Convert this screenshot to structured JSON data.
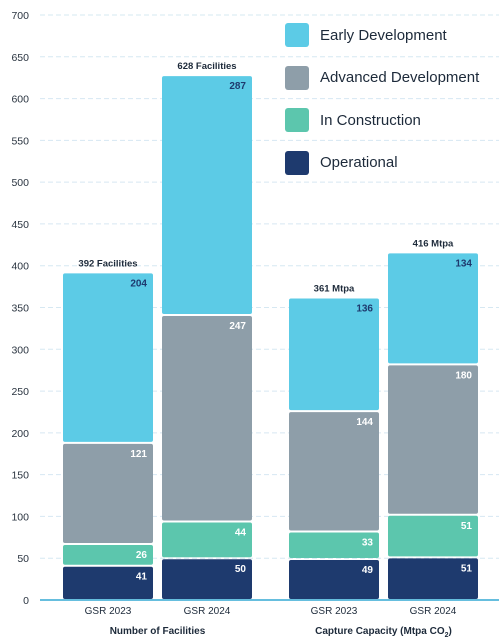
{
  "chart_data": {
    "type": "bar",
    "stacked": true,
    "ylim": [
      0,
      700
    ],
    "yticks": [
      0,
      50,
      100,
      150,
      200,
      250,
      300,
      350,
      400,
      450,
      500,
      550,
      600,
      650,
      700
    ],
    "grid": true,
    "legend_position": "top-right",
    "groups": [
      {
        "name": "Number of Facilities",
        "categories": [
          "GSR 2023",
          "GSR 2024"
        ],
        "totals": [
          "392 Facilities",
          "628 Facilities"
        ]
      },
      {
        "name": "Capture Capacity (Mtpa CO₂)",
        "categories": [
          "GSR 2023",
          "GSR 2024"
        ],
        "totals": [
          "361 Mtpa",
          "416 Mtpa"
        ]
      }
    ],
    "series": [
      {
        "name": "Operational",
        "color": "#1e3a6e",
        "values": [
          41,
          50,
          49,
          51
        ]
      },
      {
        "name": "In Construction",
        "color": "#5cc6ad",
        "values": [
          26,
          44,
          33,
          51
        ]
      },
      {
        "name": "Advanced Development",
        "color": "#8e9ea9",
        "values": [
          121,
          247,
          144,
          180
        ]
      },
      {
        "name": "Early Development",
        "color": "#5ccbe6",
        "values": [
          204,
          287,
          136,
          134
        ]
      }
    ],
    "label_colors": {
      "Operational": "#ffffff",
      "In Construction": "#ffffff",
      "Advanced Development": "#ffffff",
      "Early Development": "#1e3a6e"
    },
    "legend_order": [
      "Early Development",
      "Advanced Development",
      "In Construction",
      "Operational"
    ]
  }
}
